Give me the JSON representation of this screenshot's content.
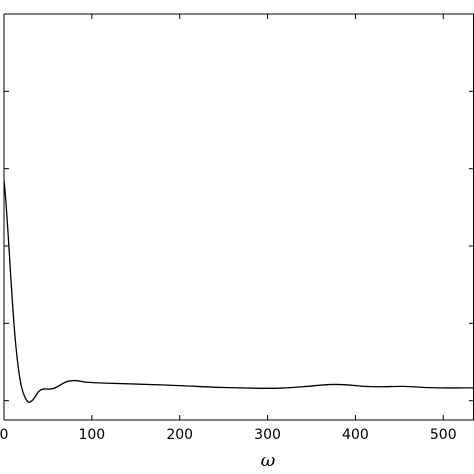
{
  "chart_data": {
    "type": "line",
    "title": "",
    "xlabel": "ω",
    "ylabel": "",
    "xlim": [
      0,
      535
    ],
    "ylim": [
      -0.05,
      1.0
    ],
    "grid": false,
    "legend": null,
    "x_ticks": [
      0,
      100,
      200,
      300,
      400,
      500
    ],
    "x_tick_labels": [
      "0",
      "100",
      "200",
      "300",
      "400",
      "500"
    ],
    "y_ticks": [
      0.0,
      0.2,
      0.4,
      0.6,
      0.8,
      1.0
    ],
    "y_tick_labels": [
      "",
      "",
      "",
      "",
      "",
      ""
    ],
    "colors": {
      "line": "#000000",
      "axes": "#000000",
      "background": "#ffffff"
    },
    "series": [
      {
        "x": [
          0,
          2,
          5,
          8,
          12,
          16,
          20,
          24,
          28,
          32,
          36,
          40,
          45,
          50,
          55,
          60,
          65,
          70,
          75,
          80,
          85,
          90,
          100,
          120,
          150,
          200,
          250,
          300,
          320,
          340,
          360,
          375,
          390,
          410,
          430,
          455,
          480,
          500,
          520,
          535
        ],
        "y": [
          0.57,
          0.52,
          0.42,
          0.31,
          0.18,
          0.09,
          0.035,
          0.008,
          -0.004,
          0.0,
          0.012,
          0.025,
          0.03,
          0.03,
          0.031,
          0.035,
          0.042,
          0.048,
          0.051,
          0.052,
          0.051,
          0.049,
          0.047,
          0.045,
          0.043,
          0.039,
          0.034,
          0.032,
          0.033,
          0.036,
          0.04,
          0.042,
          0.041,
          0.037,
          0.036,
          0.037,
          0.034,
          0.033,
          0.033,
          0.033
        ]
      }
    ]
  }
}
